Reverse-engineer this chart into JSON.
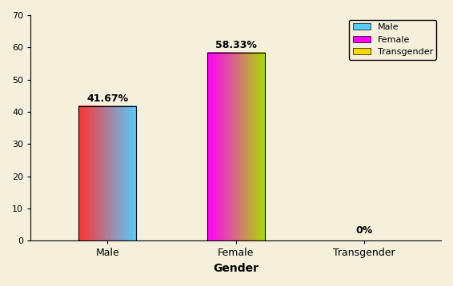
{
  "categories": [
    "Male",
    "Female",
    "Transgender"
  ],
  "values": [
    41.67,
    58.33,
    0
  ],
  "labels": [
    "41.67%",
    "58.33%",
    "0%"
  ],
  "bar_colors_left": [
    "#FF3333",
    "#FF00FF",
    "#FFD700"
  ],
  "bar_colors_right": [
    "#55CCFF",
    "#AADD00",
    "#FFD700"
  ],
  "legend_colors": [
    "#55CCFF",
    "#FF00FF",
    "#FFD700"
  ],
  "legend_labels": [
    "Male",
    "Female",
    "Transgender"
  ],
  "xlabel": "Gender",
  "ylim": [
    0,
    70
  ],
  "yticks": [
    0,
    10,
    20,
    30,
    40,
    50,
    60,
    70
  ],
  "background_color": "#F5F0DC",
  "bar_width": 0.45,
  "label_fontsize": 9,
  "axis_label_fontsize": 10,
  "x_positions": [
    0,
    1,
    2
  ]
}
